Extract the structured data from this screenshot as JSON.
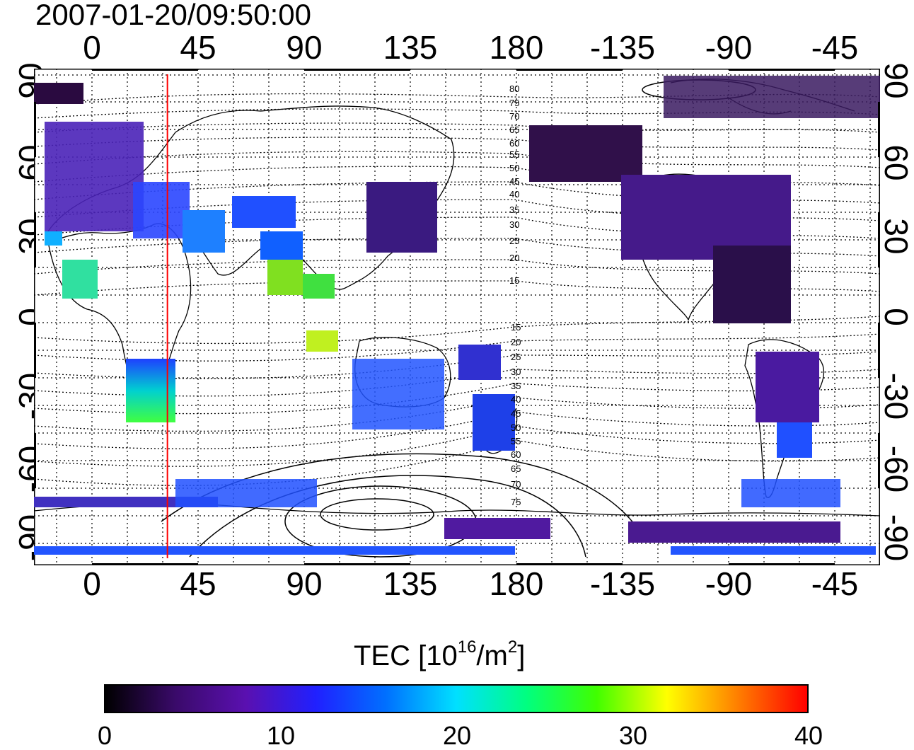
{
  "timestamp": "2007-01-20/09:50:00",
  "map": {
    "top_lon_ticks": [
      "0",
      "45",
      "90",
      "135",
      "180",
      "-135",
      "-90",
      "-45"
    ],
    "bottom_lon_ticks": [
      "0",
      "45",
      "90",
      "135",
      "180",
      "-135",
      "-90",
      "-45"
    ],
    "left_lat_ticks": [
      "90",
      "60",
      "30",
      "0",
      "-30",
      "-60",
      "-90"
    ],
    "right_lat_ticks": [
      "90",
      "60",
      "30",
      "0",
      "-30",
      "-60",
      "-90"
    ],
    "contour_labels_north": [
      "80",
      "75",
      "70",
      "65",
      "60",
      "55",
      "50",
      "45",
      "40",
      "35",
      "30",
      "25",
      "20",
      "15"
    ],
    "contour_labels_south": [
      "15",
      "20",
      "25",
      "30",
      "35",
      "40",
      "45",
      "50",
      "55",
      "60",
      "65",
      "70",
      "75"
    ],
    "terminator_longitude": 32,
    "terminator_color": "#ff0000"
  },
  "colorbar": {
    "title": "TEC  [10",
    "title_exp": "16",
    "title_unit": "/m",
    "title_unit_exp": "2",
    "title_close": "]",
    "ticks": [
      "0",
      "10",
      "20",
      "30",
      "40"
    ],
    "range": [
      0,
      40
    ],
    "colors": [
      "#000000",
      "#3a0a6a",
      "#5a10b0",
      "#2020ff",
      "#0070ff",
      "#00e0ff",
      "#00ff80",
      "#40ff00",
      "#ffff00",
      "#ff8000",
      "#ff0000"
    ]
  }
}
